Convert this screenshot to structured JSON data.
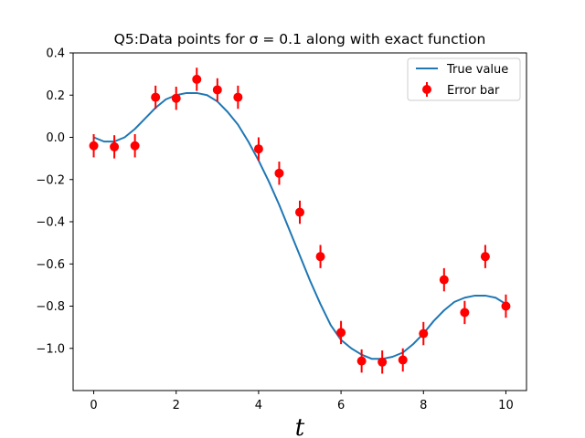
{
  "chart_data": {
    "type": "scatter",
    "title": "Q5:Data points for σ = 0.1 along with exact function",
    "xlabel": "t",
    "ylabel": "",
    "xlim": [
      -0.5,
      10.5
    ],
    "ylim": [
      -1.2,
      0.4
    ],
    "xticks": [
      0,
      2,
      4,
      6,
      8,
      10
    ],
    "yticks": [
      0.4,
      0.2,
      0.0,
      -0.2,
      -0.4,
      -0.6,
      -0.8,
      -1.0
    ],
    "ytick_labels": [
      "0.4",
      "0.2",
      "0.0",
      "−0.2",
      "−0.4",
      "−0.6",
      "−0.8",
      "−1.0"
    ],
    "xtick_labels": [
      "0",
      "2",
      "4",
      "6",
      "8",
      "10"
    ],
    "grid": false,
    "legend_position": "top-right",
    "series": [
      {
        "name": "True value",
        "kind": "line",
        "color": "#1f77b4",
        "x": [
          0,
          0.25,
          0.5,
          0.75,
          1,
          1.25,
          1.5,
          1.75,
          2,
          2.25,
          2.5,
          2.75,
          3,
          3.25,
          3.5,
          3.75,
          4,
          4.25,
          4.5,
          4.75,
          5,
          5.25,
          5.5,
          5.75,
          6,
          6.25,
          6.5,
          6.75,
          7,
          7.25,
          7.5,
          7.75,
          8,
          8.25,
          8.5,
          8.75,
          9,
          9.25,
          9.5,
          9.75,
          10
        ],
        "y": [
          0.0,
          -0.02,
          -0.02,
          0.0,
          0.04,
          0.09,
          0.14,
          0.18,
          0.2,
          0.21,
          0.21,
          0.2,
          0.17,
          0.12,
          0.06,
          -0.02,
          -0.11,
          -0.21,
          -0.32,
          -0.44,
          -0.56,
          -0.68,
          -0.79,
          -0.89,
          -0.96,
          -1.0,
          -1.03,
          -1.05,
          -1.05,
          -1.04,
          -1.02,
          -0.98,
          -0.93,
          -0.87,
          -0.82,
          -0.78,
          -0.76,
          -0.75,
          -0.75,
          -0.76,
          -0.79
        ]
      },
      {
        "name": "Error bar",
        "kind": "errorbar",
        "color": "#ff0000",
        "x": [
          0,
          0.5,
          1,
          1.5,
          2,
          2.5,
          3,
          3.5,
          4,
          4.5,
          5,
          5.5,
          6,
          6.5,
          7,
          7.5,
          8,
          8.5,
          9,
          9.5,
          10
        ],
        "y": [
          -0.04,
          -0.045,
          -0.04,
          0.19,
          0.185,
          0.275,
          0.225,
          0.19,
          -0.055,
          -0.17,
          -0.355,
          -0.565,
          -0.925,
          -1.06,
          -1.065,
          -1.055,
          -0.93,
          -0.675,
          -0.83,
          -0.565,
          -0.8
        ],
        "error": 0.055
      }
    ]
  }
}
